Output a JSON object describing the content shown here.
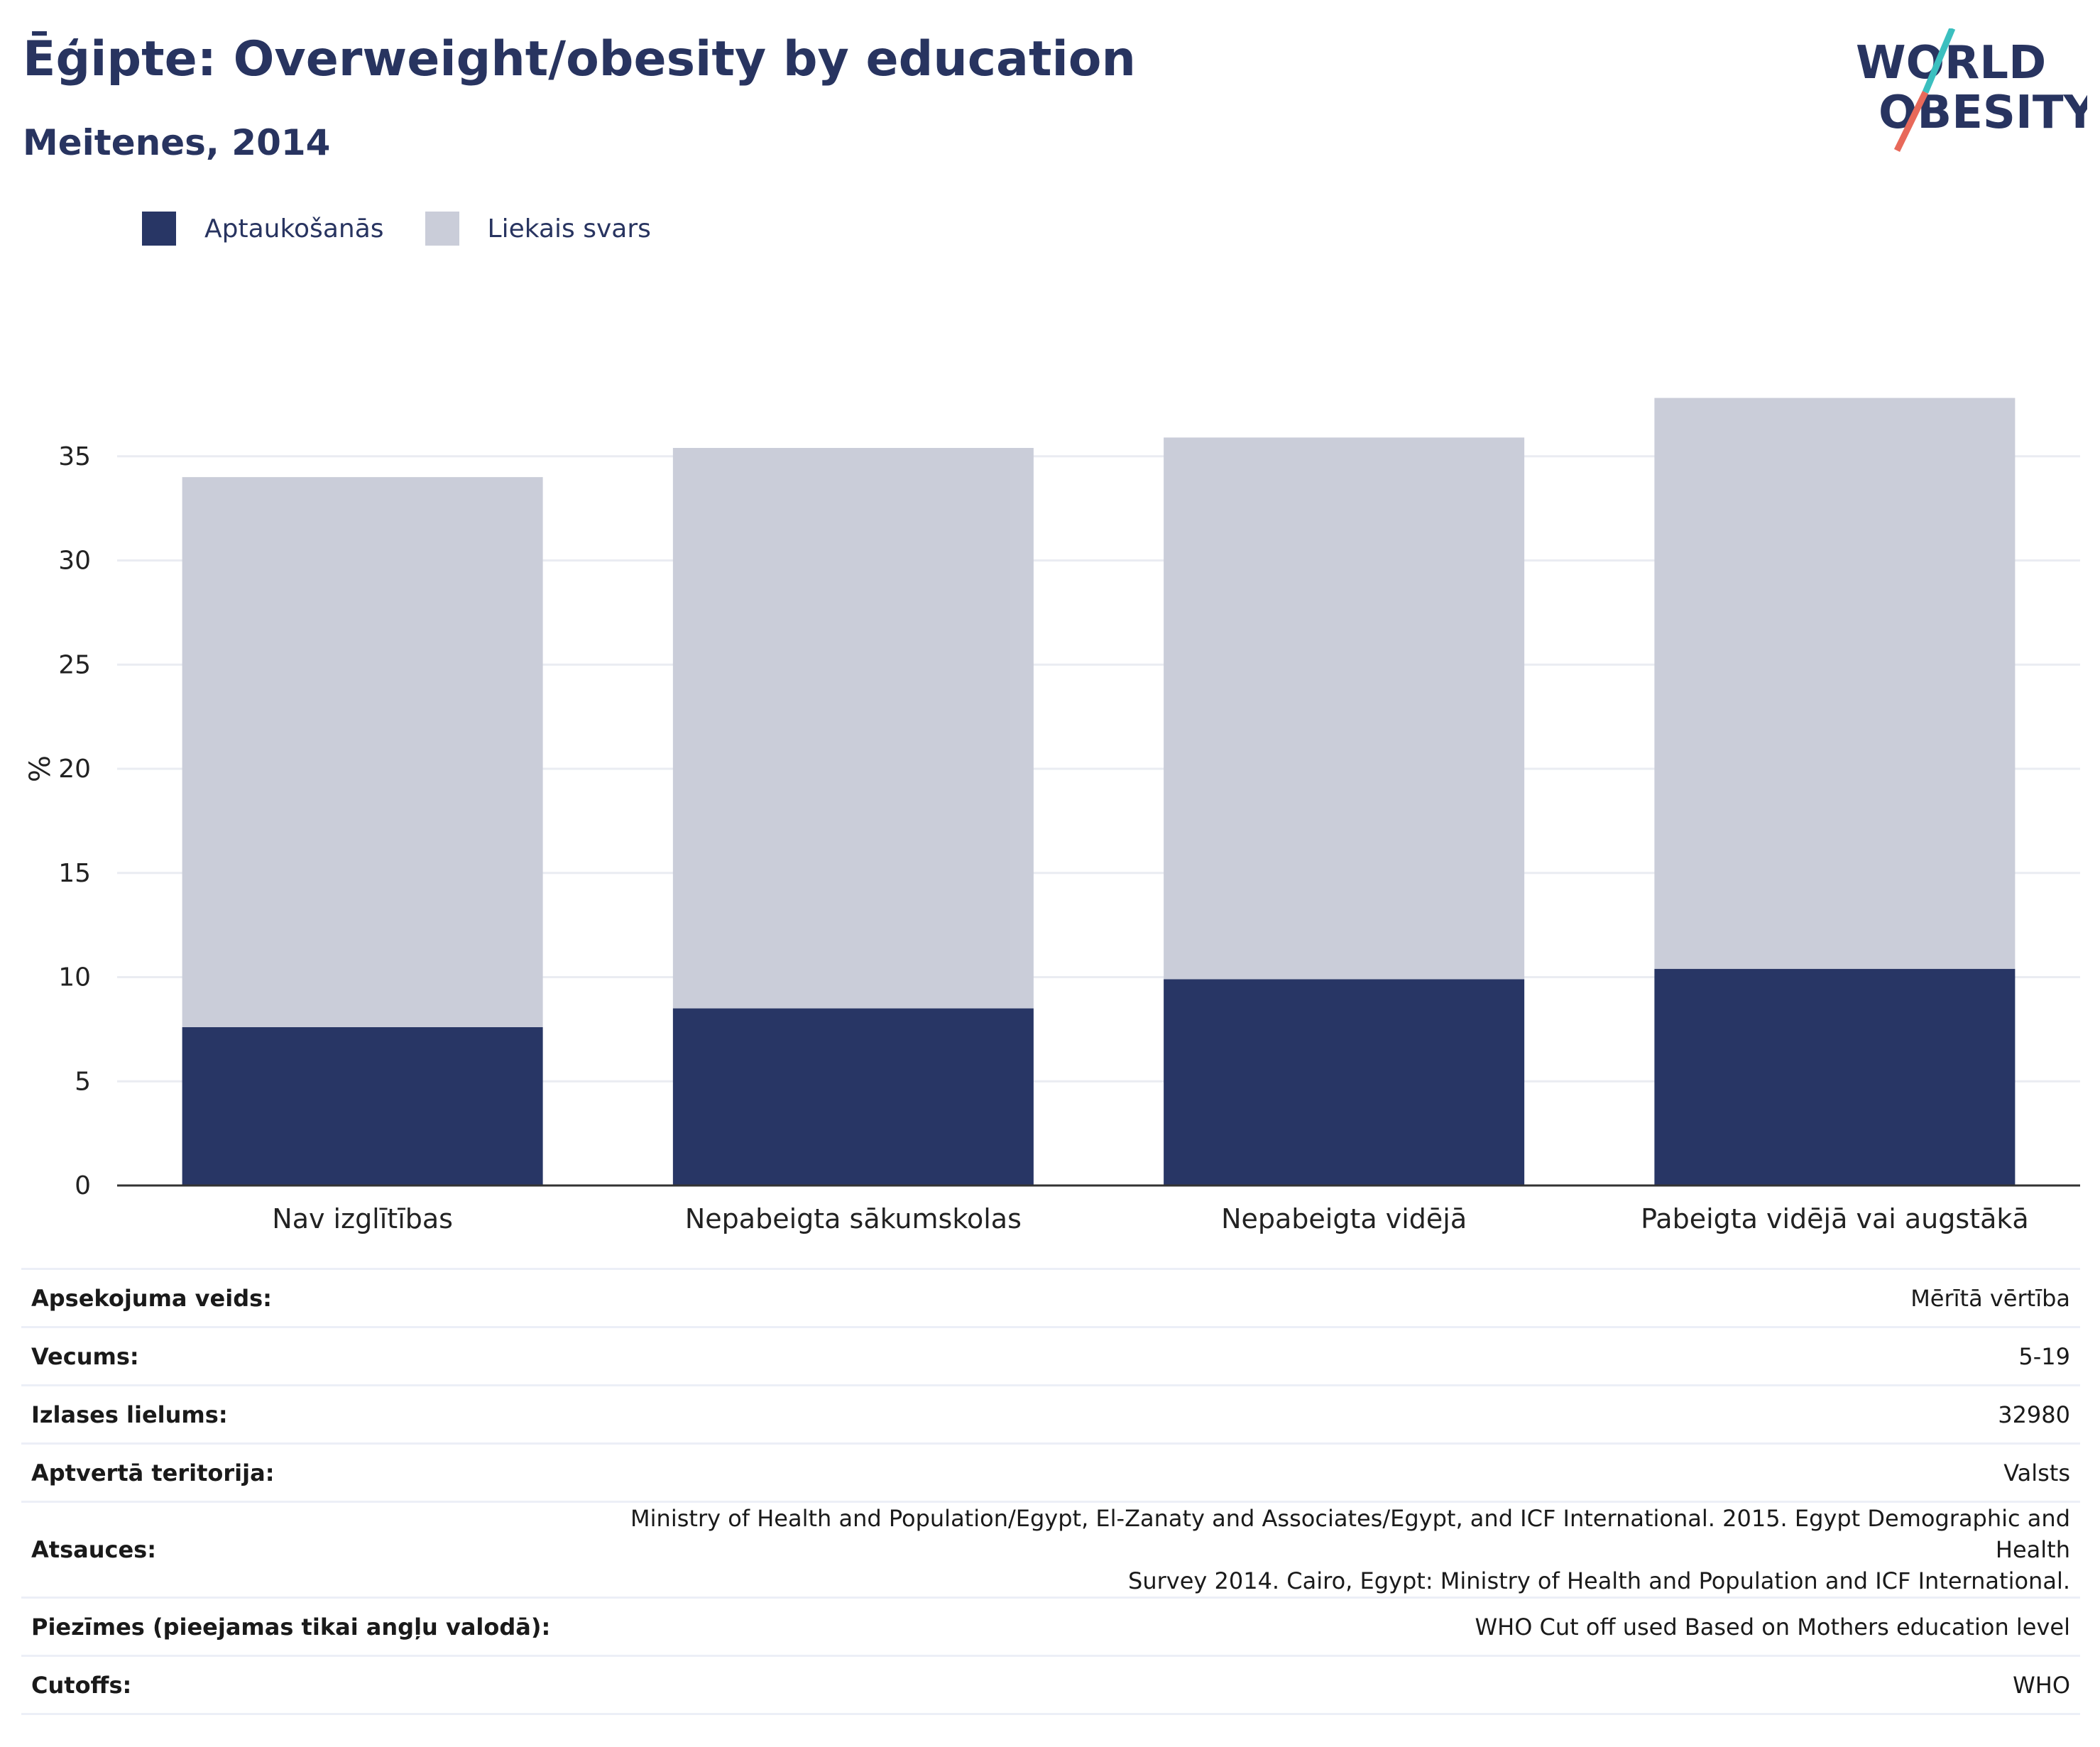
{
  "header": {
    "title": "Ēģipte: Overweight/obesity by education",
    "subtitle": "Meitenes, 2014"
  },
  "logo": {
    "line1": "WORLD",
    "line2": "OBESITY",
    "slash_top_color": "#3bbfbf",
    "slash_bottom_color": "#e8695a"
  },
  "colors": {
    "obesity": "#283665",
    "overweight": "#cacdd9",
    "text": "#283460",
    "grid": "#eaecf2",
    "axis": "#333333"
  },
  "chart_data": {
    "type": "bar",
    "stacked": true,
    "categories": [
      "Nav izglītības",
      "Nepabeigta sākumskolas",
      "Nepabeigta vidējā",
      "Pabeigta vidējā vai augstākā"
    ],
    "series": [
      {
        "name": "Aptaukošanās",
        "values": [
          7.6,
          8.5,
          9.9,
          10.4
        ]
      },
      {
        "name": "Liekais svars",
        "values": [
          26.4,
          26.9,
          26.0,
          27.4
        ]
      }
    ],
    "ylabel": "%",
    "ylim": [
      0,
      40
    ],
    "yticks": [
      0,
      5,
      10,
      15,
      20,
      25,
      30,
      35
    ],
    "grid": true,
    "legend_position": "top-left"
  },
  "info": [
    {
      "key": "Apsekojuma veids:",
      "value": "Mērītā vērtība"
    },
    {
      "key": "Vecums:",
      "value": "5-19"
    },
    {
      "key": "Izlases lielums:",
      "value": "32980"
    },
    {
      "key": "Aptvertā teritorija:",
      "value": "Valsts"
    },
    {
      "key": "Atsauces:",
      "value": "Ministry of Health and Population/Egypt, El-Zanaty and Associates/Egypt, and ICF International. 2015. Egypt Demographic and Health\nSurvey 2014. Cairo, Egypt: Ministry of Health and Population and ICF International."
    },
    {
      "key": "Piezīmes (pieejamas tikai angļu valodā):",
      "value": "WHO Cut off used Based on Mothers education level"
    },
    {
      "key": "Cutoffs:",
      "value": "WHO"
    }
  ]
}
